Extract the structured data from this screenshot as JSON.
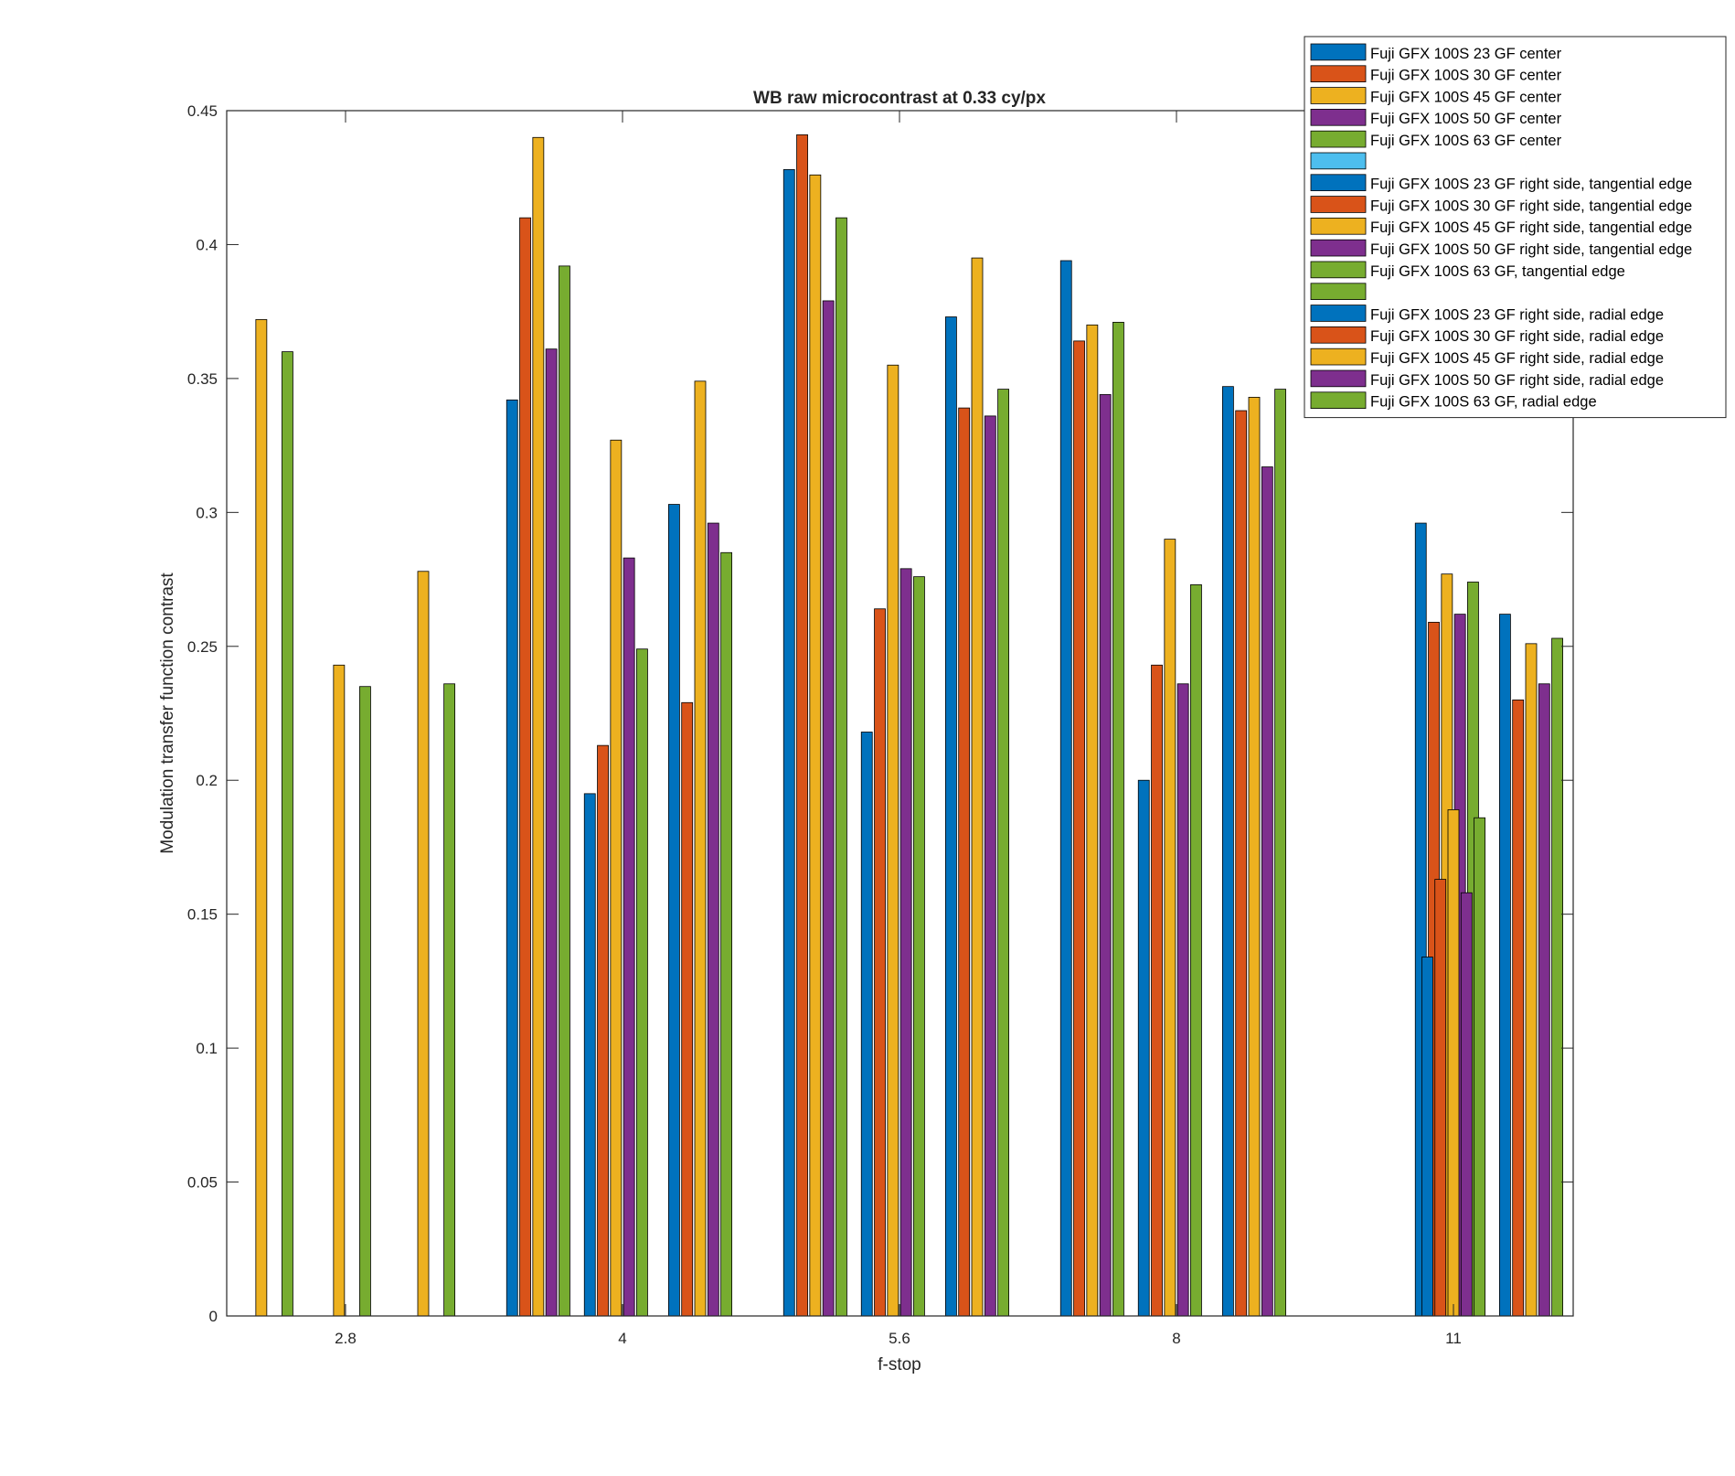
{
  "chart_data": {
    "type": "bar",
    "title": "WB raw  microcontrast at 0.33 cy/px",
    "xlabel": "f-stop",
    "ylabel": "Modulation transfer function contrast",
    "ylim": [
      0,
      0.45
    ],
    "yticks": [
      "0",
      "0.05",
      "0.1",
      "0.15",
      "0.2",
      "0.25",
      "0.3",
      "0.35",
      "0.4",
      "0.45"
    ],
    "categories": [
      "2.8",
      "4",
      "5.6",
      "8",
      "11"
    ],
    "grid": false,
    "legend_position": "top-right",
    "groups": [
      "center",
      "tangential edge",
      "radial edge"
    ],
    "series": [
      {
        "name": "Fuji GFX 100S 23 GF center",
        "group": 0,
        "color": "#0072BD",
        "values": [
          0,
          0.342,
          0.428,
          0.394,
          0
        ]
      },
      {
        "name": "Fuji GFX 100S 30 GF center",
        "group": 0,
        "color": "#D95319",
        "values": [
          0,
          0.41,
          0.441,
          0.364,
          0
        ]
      },
      {
        "name": "Fuji GFX 100S 45 GF center",
        "group": 0,
        "color": "#EDB120",
        "values": [
          0.372,
          0.44,
          0.426,
          0.37,
          0
        ]
      },
      {
        "name": "Fuji GFX 100S 50 GF center",
        "group": 0,
        "color": "#7E2F8E",
        "values": [
          0,
          0.361,
          0.379,
          0.344,
          0
        ]
      },
      {
        "name": "Fuji GFX 100S 63 GF center",
        "group": 0,
        "color": "#77AC30",
        "values": [
          0.36,
          0.392,
          0.41,
          0.371,
          0
        ]
      },
      {
        "name": "",
        "group": 0,
        "color": "#4DBEEE",
        "values": [
          0,
          0,
          0,
          0,
          0
        ]
      },
      {
        "name": "Fuji GFX 100S 23 GF right side, tangential edge",
        "group": 1,
        "color": "#0072BD",
        "values": [
          0,
          0.195,
          0.218,
          0.2,
          0.296
        ]
      },
      {
        "name": "Fuji GFX 100S 30 GF right side, tangential edge",
        "group": 1,
        "color": "#D95319",
        "values": [
          0,
          0.213,
          0.264,
          0.243,
          0.259
        ]
      },
      {
        "name": "Fuji GFX 100S 45 GF right side, tangential edge",
        "group": 1,
        "color": "#EDB120",
        "values": [
          0.243,
          0.327,
          0.355,
          0.29,
          0.277
        ]
      },
      {
        "name": "Fuji GFX 100S 50 GF right side, tangential edge",
        "group": 1,
        "color": "#7E2F8E",
        "values": [
          0,
          0.283,
          0.279,
          0.236,
          0.262
        ]
      },
      {
        "name": "Fuji GFX 100S 63 GF, tangential edge",
        "group": 1,
        "color": "#77AC30",
        "values": [
          0.235,
          0.249,
          0.276,
          0.273,
          0.274
        ]
      },
      {
        "name": "",
        "group": 1,
        "color": "#77AC30",
        "values": [
          0,
          0,
          0,
          0,
          0.134
        ]
      },
      {
        "name": "Fuji GFX 100S 23 GF right side, radial edge",
        "group": 2,
        "color": "#0072BD",
        "values": [
          0,
          0.303,
          0.373,
          0.347,
          0.262
        ]
      },
      {
        "name": "Fuji GFX 100S 30 GF right side, radial edge",
        "group": 2,
        "color": "#D95319",
        "values": [
          0,
          0.229,
          0.339,
          0.338,
          0.23
        ]
      },
      {
        "name": "Fuji GFX 100S 45 GF right side, radial edge",
        "group": 2,
        "color": "#EDB120",
        "values": [
          0.278,
          0.349,
          0.395,
          0.343,
          0.251
        ]
      },
      {
        "name": "Fuji GFX 100S 50 GF right side, radial edge",
        "group": 2,
        "color": "#7E2F8E",
        "values": [
          0,
          0.296,
          0.336,
          0.317,
          0.236
        ]
      },
      {
        "name": "Fuji GFX 100S 63 GF, radial edge",
        "group": 2,
        "color": "#77AC30",
        "values": [
          0.236,
          0.285,
          0.346,
          0.346,
          0.253
        ]
      }
    ],
    "extra_bars_11": [
      {
        "color": "#D95319",
        "value": 0.163
      },
      {
        "color": "#EDB120",
        "value": 0.189
      },
      {
        "color": "#7E2F8E",
        "value": 0.158
      },
      {
        "color": "#77AC30",
        "value": 0.186
      }
    ]
  }
}
